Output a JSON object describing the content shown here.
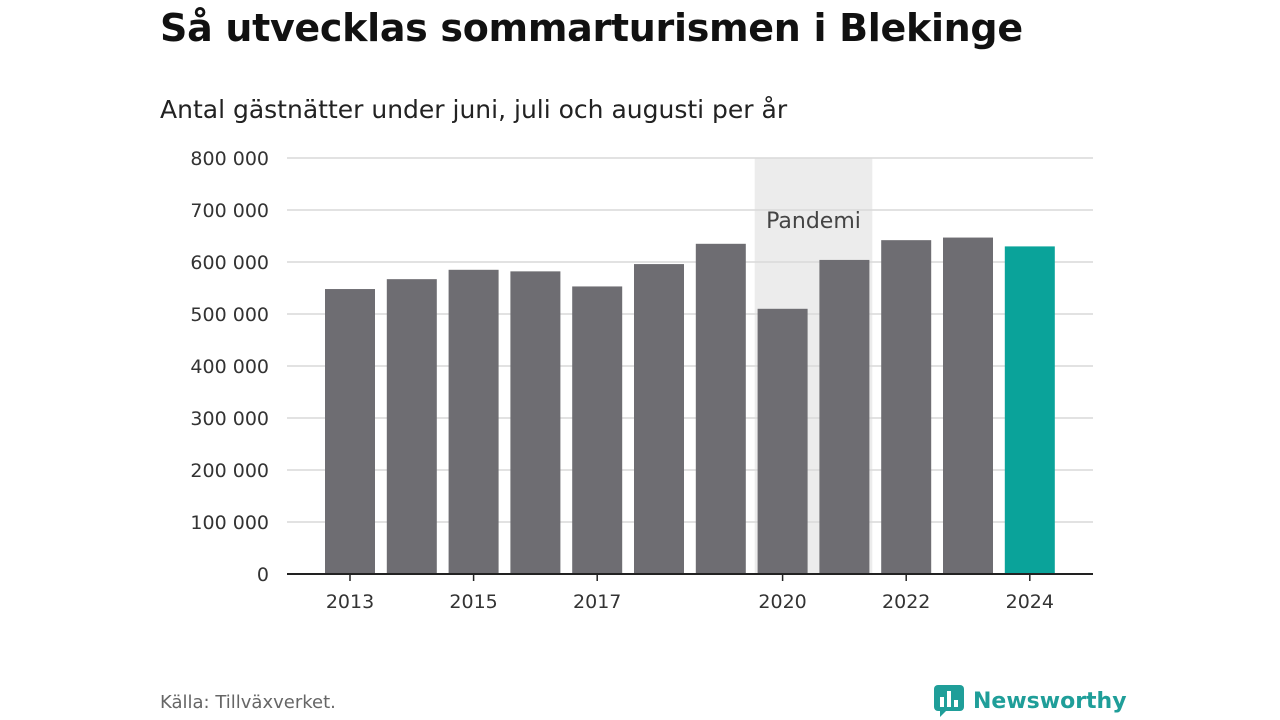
{
  "header": {
    "title": "Så utvecklas sommarturismen i Blekinge",
    "subtitle": "Antal gästnätter under juni, juli och augusti per år"
  },
  "footer": {
    "source": "Källa: Tillväxverket.",
    "brand": "Newsworthy"
  },
  "colors": {
    "bar": "#6e6d72",
    "highlight": "#0aa39a",
    "band": "#ececec",
    "grid": "#d9d9d9",
    "axis": "#222222",
    "brand": "#1f9e99"
  },
  "chart_data": {
    "type": "bar",
    "categories": [
      "2013",
      "2014",
      "2015",
      "2016",
      "2017",
      "2018",
      "2019",
      "2020",
      "2021",
      "2022",
      "2023",
      "2024"
    ],
    "values": [
      548000,
      567000,
      585000,
      582000,
      553000,
      596000,
      635000,
      510000,
      604000,
      642000,
      647000,
      630000
    ],
    "x_tick_labels": [
      "2013",
      "2015",
      "2017",
      "2020",
      "2022",
      "2024"
    ],
    "y_ticks": [
      0,
      100000,
      200000,
      300000,
      400000,
      500000,
      600000,
      700000,
      800000
    ],
    "y_tick_labels": [
      "0",
      "100 000",
      "200 000",
      "300 000",
      "400 000",
      "500 000",
      "600 000",
      "700 000",
      "800 000"
    ],
    "ylim": [
      0,
      800000
    ],
    "highlight_category": "2024",
    "annotation": {
      "label": "Pandemi",
      "categories": [
        "2020",
        "2021"
      ]
    },
    "grid": true,
    "xlabel": "",
    "ylabel": ""
  }
}
